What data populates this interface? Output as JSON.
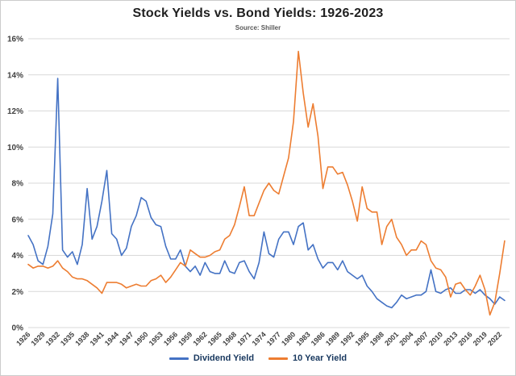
{
  "chart_data": {
    "type": "line",
    "title": "Stock Yields vs. Bond Yields: 1926-2023",
    "subtitle": "Source: Shiller",
    "xlabel": "",
    "ylabel": "",
    "xlim": [
      1926,
      2024
    ],
    "ylim": [
      0,
      16
    ],
    "grid": "horizontal",
    "grid_color": "#d9d9d9",
    "legend_position": "bottom",
    "x": [
      1926,
      1927,
      1928,
      1929,
      1930,
      1931,
      1932,
      1933,
      1934,
      1935,
      1936,
      1937,
      1938,
      1939,
      1940,
      1941,
      1942,
      1943,
      1944,
      1945,
      1946,
      1947,
      1948,
      1949,
      1950,
      1951,
      1952,
      1953,
      1954,
      1955,
      1956,
      1957,
      1958,
      1959,
      1960,
      1961,
      1962,
      1963,
      1964,
      1965,
      1966,
      1967,
      1968,
      1969,
      1970,
      1971,
      1972,
      1973,
      1974,
      1975,
      1976,
      1977,
      1978,
      1979,
      1980,
      1981,
      1982,
      1983,
      1984,
      1985,
      1986,
      1987,
      1988,
      1989,
      1990,
      1991,
      1992,
      1993,
      1994,
      1995,
      1996,
      1997,
      1998,
      1999,
      2000,
      2001,
      2002,
      2003,
      2004,
      2005,
      2006,
      2007,
      2008,
      2009,
      2010,
      2011,
      2012,
      2013,
      2014,
      2015,
      2016,
      2017,
      2018,
      2019,
      2020,
      2021,
      2022,
      2023
    ],
    "series": [
      {
        "name": "Dividend Yield",
        "color": "#4472c4",
        "values": [
          5.1,
          4.6,
          3.7,
          3.5,
          4.5,
          6.3,
          13.8,
          4.3,
          3.9,
          4.2,
          3.5,
          4.6,
          7.7,
          4.9,
          5.6,
          7.0,
          8.7,
          5.2,
          4.9,
          4.0,
          4.4,
          5.6,
          6.2,
          7.2,
          7.0,
          6.1,
          5.7,
          5.6,
          4.5,
          3.8,
          3.8,
          4.3,
          3.4,
          3.1,
          3.4,
          2.9,
          3.6,
          3.1,
          3.0,
          3.0,
          3.7,
          3.1,
          3.0,
          3.6,
          3.7,
          3.1,
          2.7,
          3.6,
          5.3,
          4.1,
          3.9,
          4.9,
          5.3,
          5.3,
          4.6,
          5.6,
          5.8,
          4.3,
          4.6,
          3.8,
          3.3,
          3.6,
          3.6,
          3.2,
          3.7,
          3.1,
          2.9,
          2.7,
          2.9,
          2.3,
          2.0,
          1.6,
          1.4,
          1.2,
          1.1,
          1.4,
          1.8,
          1.6,
          1.7,
          1.8,
          1.8,
          2.0,
          3.2,
          2.0,
          1.9,
          2.1,
          2.2,
          1.9,
          1.9,
          2.1,
          2.1,
          1.9,
          2.1,
          1.8,
          1.6,
          1.3,
          1.7,
          1.5
        ]
      },
      {
        "name": "10 Year Yield",
        "color": "#ed7d31",
        "values": [
          3.5,
          3.3,
          3.4,
          3.4,
          3.3,
          3.4,
          3.7,
          3.3,
          3.1,
          2.8,
          2.7,
          2.7,
          2.6,
          2.4,
          2.2,
          1.9,
          2.5,
          2.5,
          2.5,
          2.4,
          2.2,
          2.3,
          2.4,
          2.3,
          2.3,
          2.6,
          2.7,
          2.9,
          2.5,
          2.8,
          3.2,
          3.6,
          3.4,
          4.3,
          4.1,
          3.9,
          3.9,
          4.0,
          4.2,
          4.3,
          4.9,
          5.1,
          5.7,
          6.7,
          7.8,
          6.2,
          6.2,
          6.9,
          7.6,
          8.0,
          7.6,
          7.4,
          8.4,
          9.4,
          11.4,
          15.3,
          13.0,
          11.1,
          12.4,
          10.6,
          7.7,
          8.9,
          8.9,
          8.5,
          8.6,
          7.9,
          7.0,
          5.9,
          7.8,
          6.6,
          6.4,
          6.4,
          4.6,
          5.6,
          6.0,
          5.0,
          4.6,
          4.0,
          4.3,
          4.3,
          4.8,
          4.6,
          3.7,
          3.3,
          3.2,
          2.8,
          1.7,
          2.4,
          2.5,
          2.1,
          1.8,
          2.3,
          2.9,
          2.1,
          0.7,
          1.4,
          3.0,
          4.8
        ]
      }
    ],
    "xticks": [
      1926,
      1929,
      1932,
      1935,
      1938,
      1941,
      1944,
      1947,
      1950,
      1953,
      1956,
      1959,
      1962,
      1965,
      1968,
      1971,
      1974,
      1977,
      1980,
      1983,
      1986,
      1989,
      1992,
      1995,
      1998,
      2001,
      2004,
      2007,
      2010,
      2013,
      2016,
      2019,
      2022
    ],
    "yticks": {
      "values": [
        0,
        2,
        4,
        6,
        8,
        10,
        12,
        14,
        16
      ],
      "labels": [
        "0%",
        "2%",
        "4%",
        "6%",
        "8%",
        "10%",
        "12%",
        "14%",
        "16%"
      ]
    }
  }
}
